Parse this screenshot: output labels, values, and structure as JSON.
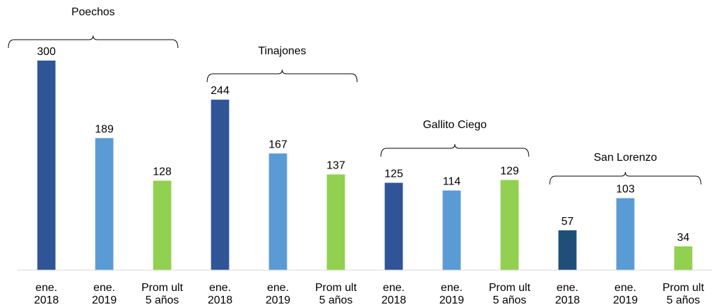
{
  "chart_data": {
    "type": "bar",
    "categories": [
      [
        "ene.",
        "2018"
      ],
      [
        "ene.",
        "2019"
      ],
      [
        "Prom ult",
        "5 años"
      ],
      [
        "ene.",
        "2018"
      ],
      [
        "ene.",
        "2019"
      ],
      [
        "Prom ult",
        "5 años"
      ],
      [
        "ene.",
        "2018"
      ],
      [
        "ene.",
        "2019"
      ],
      [
        "Prom ult",
        "5 años"
      ],
      [
        "ene.",
        "2018"
      ],
      [
        "ene.",
        "2019"
      ],
      [
        "Prom ult",
        "5 años"
      ]
    ],
    "values": [
      300,
      189,
      128,
      244,
      167,
      137,
      125,
      114,
      129,
      57,
      103,
      34
    ],
    "colors": [
      "#2f5597",
      "#5b9bd5",
      "#92d050",
      "#2f5597",
      "#5b9bd5",
      "#92d050",
      "#2f5597",
      "#5b9bd5",
      "#92d050",
      "#1f4e79",
      "#5b9bd5",
      "#92d050"
    ],
    "groups": [
      "Poechos",
      "Tinajones",
      "Gallito Ciego",
      "San Lorenzo"
    ],
    "ylim": [
      0,
      300
    ]
  }
}
